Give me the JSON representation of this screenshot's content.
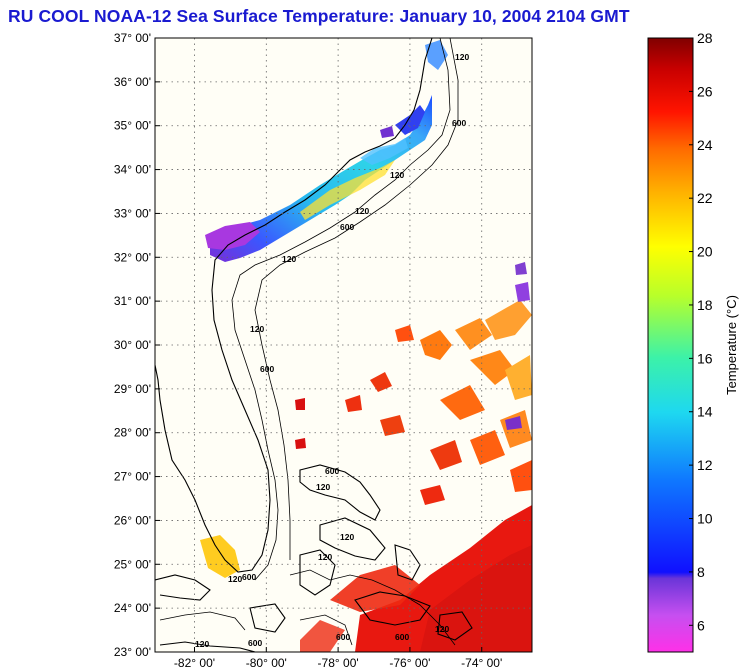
{
  "title": "RU COOL  NOAA-12  Sea Surface Temperature:  January 10, 2004 2104 GMT",
  "map": {
    "lat_labels": [
      "37° 00'",
      "36° 00'",
      "35° 00'",
      "34° 00'",
      "33° 00'",
      "32° 00'",
      "31° 00'",
      "30° 00'",
      "29° 00'",
      "28° 00'",
      "27° 00'",
      "26° 00'",
      "25° 00'",
      "24° 00'",
      "23° 00'"
    ],
    "lat_values": [
      37,
      36,
      35,
      34,
      33,
      32,
      31,
      30,
      29,
      28,
      27,
      26,
      25,
      24,
      23
    ],
    "lon_labels": [
      "-82° 00'",
      "-80° 00'",
      "-78° 00'",
      "-76° 00'",
      "-74° 00'"
    ],
    "lon_values": [
      -82,
      -80,
      -78,
      -76,
      -74
    ],
    "lat_range": [
      23,
      37
    ],
    "lon_range": [
      -83.1,
      -72.6
    ],
    "grid": true,
    "isobath_labels": [
      "120",
      "600"
    ],
    "land_color": "#fffef6",
    "no_data_color": "#ffffff"
  },
  "colorbar": {
    "title": "Temperature (°C)",
    "range": [
      5,
      28
    ],
    "tick_values": [
      6,
      8,
      10,
      12,
      14,
      16,
      18,
      20,
      22,
      24,
      26,
      28
    ],
    "tick_labels": [
      "6",
      "8",
      "10",
      "12",
      "14",
      "16",
      "18",
      "20",
      "22",
      "24",
      "26",
      "28"
    ]
  },
  "sst_patches": [
    {
      "region": "carolina-shelf-south",
      "temp": 8
    },
    {
      "region": "carolina-shelf",
      "temp": 13
    },
    {
      "region": "carolina-inner",
      "temp": 15
    },
    {
      "region": "cape-hatteras",
      "temp": 9
    },
    {
      "region": "gulf-stream-south",
      "temp": 25
    },
    {
      "region": "florida-bay",
      "temp": 20
    }
  ]
}
